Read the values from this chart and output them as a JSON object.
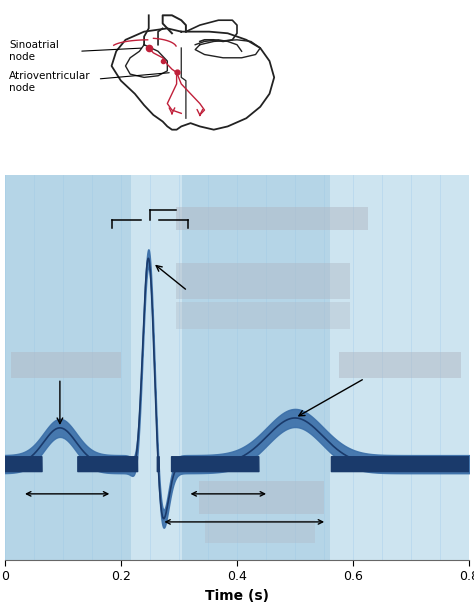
{
  "bg_color": "#cde4f0",
  "ecg_color": "#1a3a6b",
  "ecg_fill_color": "#3a6ea8",
  "box_color": "#9ec8e0",
  "stripe_color": "#b8d8ee",
  "xlim": [
    0,
    0.8
  ],
  "xlabel": "Time (s)",
  "xticks": [
    0,
    0.2,
    0.4,
    0.6,
    0.8
  ],
  "gray_box_color": "#b0b8c4",
  "heart_line_color": "#222222",
  "heart_red_color": "#c0203a"
}
